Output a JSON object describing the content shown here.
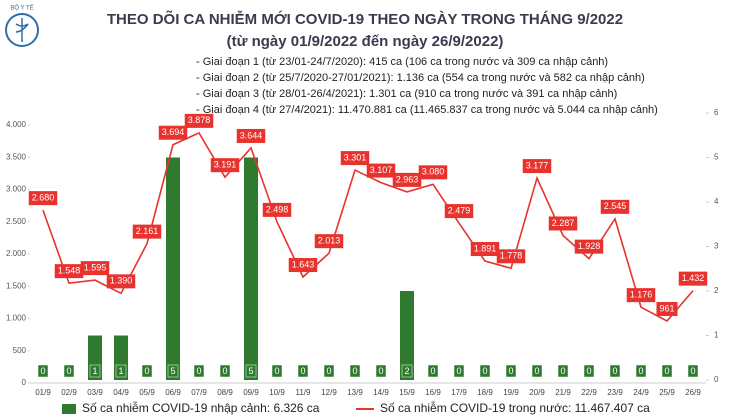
{
  "logo_text": "BỘ Y TẾ",
  "chart_data": {
    "type": "combo",
    "title": "THEO DÕI CA NHIỄM MỚI COVID-19 THEO NGÀY TRONG THÁNG 9/2022",
    "subtitle": "(từ ngày 01/9/2022 đến ngày 26/9/2022)",
    "notes": [
      "- Giai đoạn 1 (từ 23/01-24/7/2020): 415 ca (106 ca trong nước và 309 ca nhập cảnh)",
      "- Giai đoạn 2 (từ 25/7/2020-27/01/2021): 1.136 ca (554 ca trong nước và 582 ca nhập cảnh)",
      "- Giai đoạn 3 (từ 28/01-26/4/2021): 1.301 ca (910 ca trong nước và 391 ca nhập cảnh)",
      "- Giai đoạn 4 (từ 27/4/2021): 11.470.881 ca (11.465.837 ca trong nước và 5.044 ca nhập cảnh)"
    ],
    "categories": [
      "01/9",
      "02/9",
      "03/9",
      "04/9",
      "05/9",
      "06/9",
      "07/9",
      "08/9",
      "09/9",
      "10/9",
      "11/9",
      "12/9",
      "13/9",
      "14/9",
      "15/9",
      "16/9",
      "17/9",
      "18/9",
      "19/9",
      "20/9",
      "21/9",
      "22/9",
      "23/9",
      "24/9",
      "25/9",
      "26/9"
    ],
    "ylim": [
      0,
      4000
    ],
    "yticks": [
      0,
      500,
      {
        "value": 1000,
        "label": "1.000"
      },
      {
        "value": 1500,
        "label": "1.500"
      },
      {
        "value": 2000,
        "label": "2.000"
      },
      {
        "value": 2500,
        "label": "2.500"
      },
      {
        "value": 3000,
        "label": "3.000"
      },
      {
        "value": 3500,
        "label": "3.500"
      },
      {
        "value": 4000,
        "label": "4.000"
      }
    ],
    "y2lim": [
      0,
      6
    ],
    "y2ticks": [
      0,
      1,
      2,
      3,
      4,
      5,
      6
    ],
    "series": [
      {
        "name": "Số ca nhiễm COVID-19 nhập cảnh: 6.326 ca",
        "type": "bar",
        "axis": "y2",
        "color": "#2f7a2f",
        "values": [
          0,
          0,
          1,
          1,
          0,
          5,
          0,
          0,
          5,
          0,
          0,
          0,
          0,
          0,
          2,
          0,
          0,
          0,
          0,
          0,
          0,
          0,
          0,
          0,
          0,
          0
        ]
      },
      {
        "name": "Số ca nhiễm COVID-19 trong nước: 11.467.407 ca",
        "type": "line",
        "color": "#e8322e",
        "values": [
          2680,
          1548,
          1595,
          1390,
          2161,
          3694,
          3878,
          3191,
          3644,
          2498,
          1643,
          2013,
          3301,
          3107,
          2963,
          3080,
          2479,
          1891,
          1778,
          3177,
          2287,
          1928,
          2545,
          1176,
          961,
          1432
        ],
        "value_labels": [
          "2.680",
          "1.548",
          "1.595",
          "1.390",
          "2.161",
          "3.694",
          "3.878",
          "3.191",
          "3.644",
          "2.498",
          "1.643",
          "2.013",
          "3.301",
          "3.107",
          "2.963",
          "3.080",
          "2.479",
          "1.891",
          "1.778",
          "3.177",
          "2.287",
          "1.928",
          "2.545",
          "1.176",
          "961",
          "1.432"
        ]
      }
    ]
  }
}
